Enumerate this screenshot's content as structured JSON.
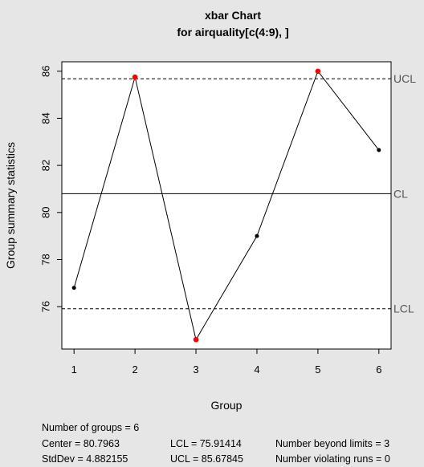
{
  "chart_data": {
    "type": "line",
    "title": "xbar Chart",
    "subtitle": "for airquality[c(4:9), ]",
    "xlabel": "Group",
    "ylabel": "Group summary statistics",
    "x": [
      1,
      2,
      3,
      4,
      5,
      6
    ],
    "values": [
      76.8,
      85.75,
      74.6,
      79.0,
      86.0,
      82.65
    ],
    "beyond_limits": [
      false,
      true,
      true,
      false,
      true,
      false
    ],
    "xlim": [
      0.8,
      6.2
    ],
    "ylim": [
      74.2,
      86.4
    ],
    "yticks": [
      76,
      78,
      80,
      82,
      84,
      86
    ],
    "xticks": [
      1,
      2,
      3,
      4,
      5,
      6
    ],
    "limits": {
      "ucl": 85.67845,
      "cl": 80.7963,
      "lcl": 75.91414
    },
    "limit_labels": {
      "ucl": "UCL",
      "cl": "CL",
      "lcl": "LCL"
    },
    "colors": {
      "normal_point": "#000000",
      "violation_point": "#ff0000",
      "background": "#e6e6e6",
      "plot_background": "#ffffff"
    }
  },
  "stats": {
    "groups": "Number of groups = 6",
    "center": "Center = 80.7963",
    "stddev": "StdDev = 4.882155",
    "lcl": "LCL = 75.91414",
    "ucl": "UCL = 85.67845",
    "beyond": "Number beyond limits = 3",
    "violating": "Number violating runs = 0"
  }
}
